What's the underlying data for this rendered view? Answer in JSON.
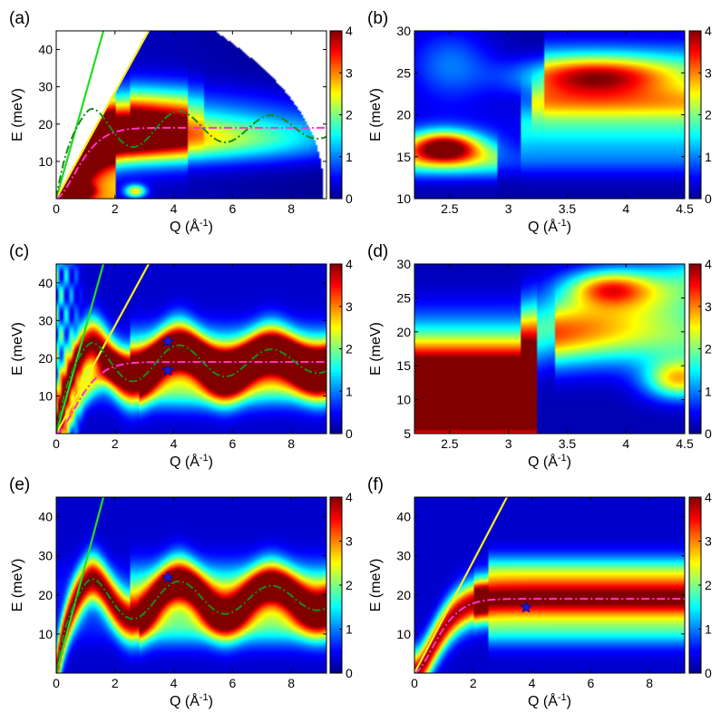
{
  "colormap": [
    "#00008f",
    "#0000ff",
    "#0080ff",
    "#00ffff",
    "#80ff80",
    "#ffff00",
    "#ff8000",
    "#ff0000",
    "#800000"
  ],
  "colorbar": {
    "ticks": [
      "0",
      "1",
      "2",
      "3",
      "4"
    ],
    "range": [
      0,
      4
    ]
  },
  "chart_data": [
    {
      "id": "a",
      "panel_label": "(a)",
      "type": "heatmap",
      "xlabel_main": "Q (Å",
      "xlabel_sup": "-1",
      "xlabel_end": ")",
      "ylabel": "E (meV)",
      "xlim": [
        0,
        9.2
      ],
      "ylim": [
        0,
        45
      ],
      "xticks": [
        "0",
        "2",
        "4",
        "6",
        "8"
      ],
      "xtick_values": [
        0,
        2,
        4,
        6,
        8
      ],
      "yticks": [
        "10",
        "20",
        "30",
        "40"
      ],
      "ytick_values": [
        10,
        20,
        30,
        40
      ],
      "field": "measured_wide",
      "lines": [
        {
          "kind": "linear",
          "color": "#22dd22",
          "slope": 28.0
        },
        {
          "kind": "linear",
          "color": "#ffee22",
          "slope": 14.3
        },
        {
          "kind": "oscillating",
          "color": "#1a8a1a",
          "dashed": true
        },
        {
          "kind": "saturating",
          "color": "#ff33cc",
          "dashed": true
        }
      ],
      "stars": []
    },
    {
      "id": "b",
      "panel_label": "(b)",
      "type": "heatmap",
      "xlabel_main": "Q (Å",
      "xlabel_sup": "-1",
      "xlabel_end": ")",
      "ylabel": "E (meV)",
      "xlim": [
        2.2,
        4.5
      ],
      "ylim": [
        10,
        30
      ],
      "xticks": [
        "2.5",
        "3",
        "3.5",
        "4",
        "4.5"
      ],
      "xtick_values": [
        2.5,
        3,
        3.5,
        4,
        4.5
      ],
      "yticks": [
        "10",
        "15",
        "20",
        "25",
        "30"
      ],
      "ytick_values": [
        10,
        15,
        20,
        25,
        30
      ],
      "field": "measured_zoom",
      "lines": [],
      "stars": []
    },
    {
      "id": "c",
      "panel_label": "(c)",
      "type": "heatmap",
      "xlabel_main": "Q (Å",
      "xlabel_sup": "-1",
      "xlabel_end": ")",
      "ylabel": "E (meV)",
      "xlim": [
        0,
        9.2
      ],
      "ylim": [
        0,
        45
      ],
      "xticks": [
        "0",
        "2",
        "4",
        "6",
        "8"
      ],
      "xtick_values": [
        0,
        2,
        4,
        6,
        8
      ],
      "yticks": [
        "10",
        "20",
        "30",
        "40"
      ],
      "ytick_values": [
        10,
        20,
        30,
        40
      ],
      "field": "model_full",
      "lines": [
        {
          "kind": "linear",
          "color": "#22dd22",
          "slope": 28.0
        },
        {
          "kind": "linear",
          "color": "#ffee22",
          "slope": 14.3
        },
        {
          "kind": "oscillating",
          "color": "#1a8a1a",
          "dashed": true
        },
        {
          "kind": "saturating",
          "color": "#ff33cc",
          "dashed": true
        }
      ],
      "stars": [
        {
          "x": 3.8,
          "y": 24.5
        },
        {
          "x": 3.8,
          "y": 16.8
        }
      ]
    },
    {
      "id": "d",
      "panel_label": "(d)",
      "type": "heatmap",
      "xlabel_main": "Q (Å",
      "xlabel_sup": "-1",
      "xlabel_end": ")",
      "ylabel": "E (meV)",
      "xlim": [
        2.2,
        4.5
      ],
      "ylim": [
        5,
        30
      ],
      "xticks": [
        "2.5",
        "3",
        "3.5",
        "4",
        "4.5"
      ],
      "xtick_values": [
        2.5,
        3,
        3.5,
        4,
        4.5
      ],
      "yticks": [
        "5",
        "10",
        "15",
        "20",
        "25",
        "30"
      ],
      "ytick_values": [
        5,
        10,
        15,
        20,
        25,
        30
      ],
      "field": "model_zoom",
      "lines": [],
      "stars": []
    },
    {
      "id": "e",
      "panel_label": "(e)",
      "type": "heatmap",
      "xlabel_main": "Q (Å",
      "xlabel_sup": "-1",
      "xlabel_end": ")",
      "ylabel": "E (meV)",
      "xlim": [
        0,
        9.2
      ],
      "ylim": [
        0,
        45
      ],
      "xticks": [
        "0",
        "2",
        "4",
        "6",
        "8"
      ],
      "xtick_values": [
        0,
        2,
        4,
        6,
        8
      ],
      "yticks": [
        "10",
        "20",
        "30",
        "40"
      ],
      "ytick_values": [
        10,
        20,
        30,
        40
      ],
      "field": "model_longitudinal",
      "lines": [
        {
          "kind": "linear",
          "color": "#22dd22",
          "slope": 28.0
        },
        {
          "kind": "oscillating",
          "color": "#1a8a1a",
          "dashed": true
        }
      ],
      "stars": [
        {
          "x": 3.8,
          "y": 24.5
        }
      ]
    },
    {
      "id": "f",
      "panel_label": "(f)",
      "type": "heatmap",
      "xlabel_main": "Q (Å",
      "xlabel_sup": "-1",
      "xlabel_end": ")",
      "ylabel": "E (meV)",
      "xlim": [
        0,
        9.2
      ],
      "ylim": [
        0,
        45
      ],
      "xticks": [
        "0",
        "2",
        "4",
        "6",
        "8"
      ],
      "xtick_values": [
        0,
        2,
        4,
        6,
        8
      ],
      "yticks": [
        "10",
        "20",
        "30",
        "40"
      ],
      "ytick_values": [
        10,
        20,
        30,
        40
      ],
      "field": "model_transverse",
      "lines": [
        {
          "kind": "linear",
          "color": "#ffee22",
          "slope": 14.3
        },
        {
          "kind": "saturating",
          "color": "#ff33cc",
          "dashed": true
        }
      ],
      "stars": [
        {
          "x": 3.8,
          "y": 16.8
        }
      ]
    }
  ]
}
